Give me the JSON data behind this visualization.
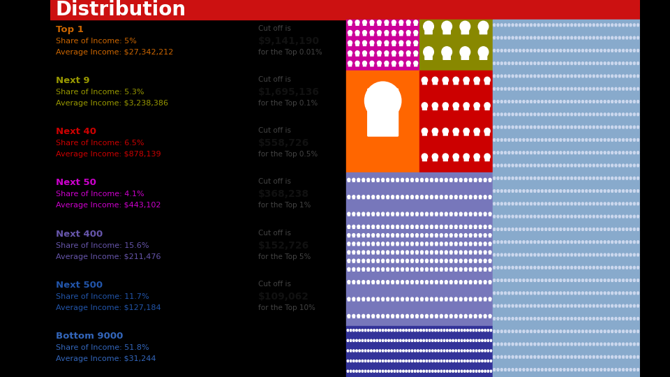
{
  "title": "Distribution",
  "bg_color": "#ddd8cc",
  "outer_left_color": "#1a3a6b",
  "outer_right_color": "#cc1111",
  "top_strip_color": "#cc1111",
  "groups": [
    {
      "label": "Top 1",
      "label_color": "#cc6600",
      "share": "Share of Income: 5%",
      "avg": "Average Income: $27,342,212",
      "cutoff_text": "Cut off is",
      "cutoff_value": "$9,141,190",
      "cutoff_pct": "for the Top 0.01%"
    },
    {
      "label": "Next 9",
      "label_color": "#999900",
      "share": "Share of Income: 5.3%",
      "avg": "Average Income: $3,238,386",
      "cutoff_text": "Cut off is",
      "cutoff_value": "$1,695,136",
      "cutoff_pct": "for the Top 0.1%"
    },
    {
      "label": "Next 40",
      "label_color": "#cc0000",
      "share": "Share of Income: 6.5%",
      "avg": "Average Income: $878,139",
      "cutoff_text": "Cut off is",
      "cutoff_value": "$558,726",
      "cutoff_pct": "for the Top 0.5%"
    },
    {
      "label": "Next 50",
      "label_color": "#cc00cc",
      "share": "Share of Income: 4.1%",
      "avg": "Average Income: $443,102",
      "cutoff_text": "Cut off is",
      "cutoff_value": "$368,238",
      "cutoff_pct": "for the Top 1%"
    },
    {
      "label": "Next 400",
      "label_color": "#6655aa",
      "share": "Share of Income: 15.6%",
      "avg": "Average Income: $211,476",
      "cutoff_text": "Cut off is",
      "cutoff_value": "$152,726",
      "cutoff_pct": "for the Top 5%"
    },
    {
      "label": "Next 500",
      "label_color": "#2255aa",
      "share": "Share of Income: 11.7%",
      "avg": "Average Income: $127,184",
      "cutoff_text": "Cut off is",
      "cutoff_value": "$109,062",
      "cutoff_pct": "for the Top 10%"
    },
    {
      "label": "Bottom 9000",
      "label_color": "#3366bb",
      "share": "Share of Income: 51.8%",
      "avg": "Average Income: $31,244",
      "cutoff_text": "",
      "cutoff_value": "",
      "cutoff_pct": ""
    }
  ],
  "block_colors": {
    "magenta": "#cc0099",
    "olive": "#888800",
    "orange": "#ff6600",
    "red": "#cc0000",
    "purple": "#7777bb",
    "dark_blue": "#333399",
    "light_blue": "#88aacc"
  }
}
